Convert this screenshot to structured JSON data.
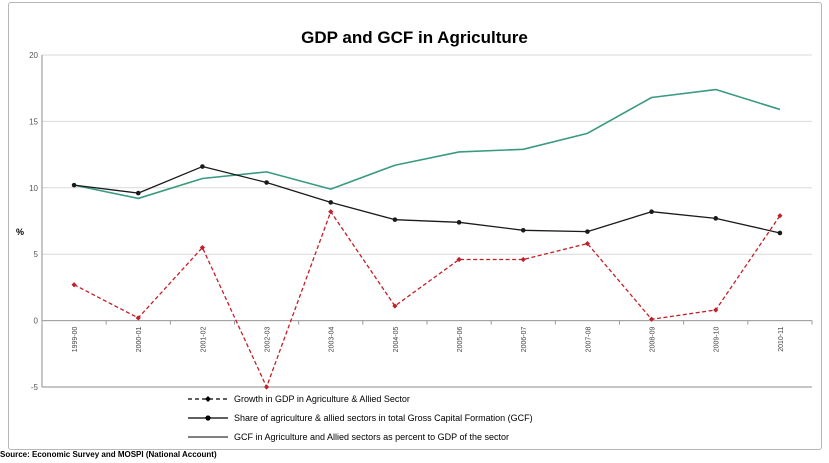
{
  "chart_data": {
    "type": "line",
    "title": "GDP and GCF in Agriculture",
    "ylabel": "%",
    "xlabel": "",
    "ylim": [
      -5,
      20
    ],
    "yticks": [
      -5,
      0,
      5,
      10,
      15,
      20
    ],
    "grid": true,
    "legend_position": "bottom",
    "categories": [
      "1999-00",
      "2000-01",
      "2001-02",
      "2002-03",
      "2003-04",
      "2004-05",
      "2005-06",
      "2006-07",
      "2007-08",
      "2008-09",
      "2009-10",
      "2010-11"
    ],
    "series": [
      {
        "name": "Growth in GDP in Agriculture & Allied Sector",
        "color": "#c0202a",
        "style": "dashed",
        "values": [
          2.7,
          0.2,
          5.5,
          -5.0,
          8.2,
          1.1,
          4.6,
          4.6,
          5.8,
          0.1,
          0.8,
          7.9
        ]
      },
      {
        "name": "Share of agriculture & allied sectors in total Gross Capital Formation (GCF)",
        "color": "#1a1a1a",
        "style": "solid",
        "values": [
          10.2,
          9.6,
          11.6,
          10.4,
          8.9,
          7.6,
          7.4,
          6.8,
          6.7,
          8.2,
          7.7,
          6.6
        ]
      },
      {
        "name": "GCF in Agriculture and Allied sectors as percent to GDP of the sector",
        "color": "#3a9a80",
        "style": "solid",
        "values": [
          10.2,
          9.2,
          10.7,
          11.2,
          9.9,
          11.7,
          12.7,
          12.9,
          14.1,
          16.8,
          17.4,
          15.9
        ]
      }
    ]
  },
  "source_text": "Source: Economic Survey and MOSPI (National Account)"
}
